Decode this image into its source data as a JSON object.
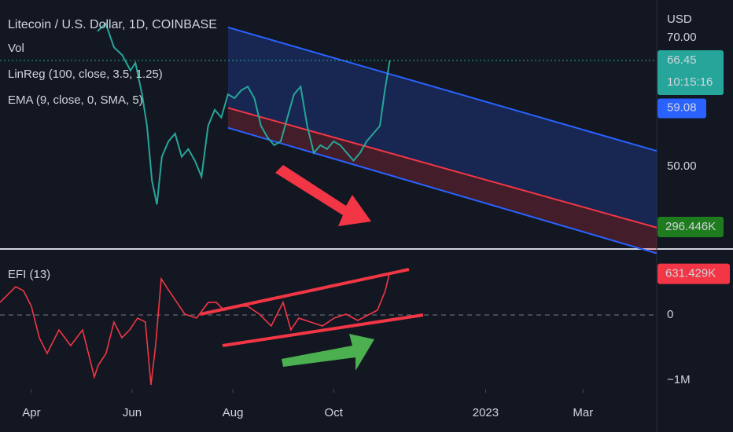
{
  "chart_data": [
    {
      "type": "line",
      "title": "Litecoin / U.S. Dollar, 1D, COINBASE",
      "legend_items": [
        "Vol",
        "LinReg (100, close, 3.5, 1.25)",
        "EMA (9, close, 0, SMA, 5)"
      ],
      "currency": "USD",
      "xlim": [
        -19,
        378.6
      ],
      "xticks": [
        {
          "value": 0,
          "label": "Apr"
        },
        {
          "value": 61,
          "label": "Jun"
        },
        {
          "value": 122,
          "label": "Aug"
        },
        {
          "value": 183,
          "label": "Oct"
        },
        {
          "value": 275,
          "label": "2023"
        },
        {
          "value": 334,
          "label": "Mar"
        }
      ],
      "ylim": [
        37.3,
        75.85
      ],
      "yticks": [
        {
          "value": 70,
          "label": "70.00"
        },
        {
          "value": 50,
          "label": "50.00"
        }
      ],
      "price": {
        "color": "#26a69a",
        "x": [
          40,
          45,
          50,
          55,
          60,
          63,
          67,
          70,
          73,
          76,
          79,
          83,
          87,
          91,
          95,
          99,
          103,
          107,
          111,
          115,
          119,
          123,
          127,
          131,
          135,
          139,
          143,
          147,
          151,
          155,
          159,
          163,
          167,
          171,
          175,
          179,
          183,
          187,
          191,
          195,
          199,
          203,
          207,
          211,
          214,
          217
        ],
        "values": [
          71.0,
          72.2,
          68.5,
          67.3,
          64.9,
          66.1,
          61.2,
          56.3,
          47.8,
          44.1,
          51.5,
          53.9,
          55.1,
          51.5,
          52.7,
          50.9,
          48.4,
          56.3,
          58.8,
          57.6,
          61.2,
          60.6,
          61.8,
          62.4,
          60.6,
          56.3,
          54.5,
          53.3,
          53.9,
          57.6,
          61.2,
          62.4,
          56.3,
          52.1,
          53.3,
          52.7,
          53.9,
          53.3,
          52.1,
          50.9,
          52.1,
          53.9,
          55.1,
          56.3,
          61.8,
          66.45
        ]
      },
      "linreg": {
        "x": [
          119,
          378.6
        ],
        "upper": [
          71.6,
          52.4
        ],
        "middle": [
          59.1,
          40.5
        ],
        "lower": [
          56.0,
          36.5
        ],
        "channel_color": "#2962ff",
        "middle_color": "#f23645"
      },
      "last_price": 66.45,
      "countdown": "10:15:16",
      "ema_last": 59.08,
      "volume_tag": "296.446K"
    },
    {
      "type": "line",
      "title": "EFI (13)",
      "xlim": [
        -19,
        378.6
      ],
      "ylim": [
        -1132530,
        1000000
      ],
      "yticks": [
        0,
        {
          "value": -1000000,
          "label": "−1M"
        }
      ],
      "color": "#f23645",
      "x": [
        -19,
        -9.5,
        -4.8,
        0,
        4.8,
        9.5,
        16.7,
        23.8,
        31,
        38.1,
        40.5,
        45.2,
        50,
        54.8,
        59.5,
        64.3,
        69,
        72.4,
        75.2,
        78.6,
        83.3,
        88.1,
        92.9,
        100,
        107.1,
        111.9,
        116.7,
        123.8,
        131,
        138.1,
        145.2,
        152.4,
        157.1,
        161.9,
        169,
        176.2,
        183.3,
        190.5,
        197.6,
        204.8,
        209.5,
        214.3,
        216.7
      ],
      "values": [
        193000,
        434000,
        373000,
        133000,
        -349000,
        -590000,
        -229000,
        -470000,
        -229000,
        -952000,
        -771000,
        -590000,
        -108000,
        -349000,
        -229000,
        -48000,
        -108000,
        -1072000,
        -470000,
        554000,
        373000,
        193000,
        12000,
        -48000,
        193000,
        193000,
        72000,
        133000,
        133000,
        12000,
        -169000,
        193000,
        -229000,
        -48000,
        -108000,
        -169000,
        -48000,
        12000,
        -84000,
        12000,
        72000,
        373000,
        631429
      ],
      "last_label": "631.429K"
    }
  ]
}
